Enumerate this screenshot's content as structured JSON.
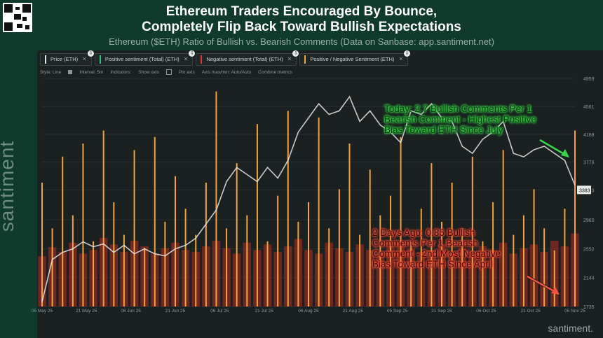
{
  "header": {
    "title_line1": "Ethereum Traders Encouraged By Bounce,",
    "title_line2": "Completely Flip Back Toward Bullish Expectations",
    "subtitle": "Ethereum ($ETH) Ratio of Bullish vs. Bearish Comments (Data on Sanbase: app.santiment.net)"
  },
  "legend": [
    {
      "label": "Price (ETH)",
      "color": "#e8e8e8"
    },
    {
      "label": "Positive sentiment (Total) (ETH)",
      "color": "#2ec27e"
    },
    {
      "label": "Negative sentiment (Total) (ETH)",
      "color": "#e0362c"
    },
    {
      "label": "Positive / Negative Sentiment (ETH)",
      "color": "#f2a33a"
    }
  ],
  "toolbar": {
    "style": "Style: Line",
    "interval": "Interval: 5m",
    "indicators": "Indicators:",
    "show_axis": "Show axis",
    "pin_axis": "Pin axis",
    "axis_minmax": "Axis max/min: Auto/Auto",
    "combine": "Combine metrics"
  },
  "annotations": {
    "bullish": [
      "Today: 2.7 Bullish Comments Per 1",
      "Bearish Comment - Highest Positive",
      "Bias Toward ETH Since July"
    ],
    "bearish": [
      "2 Days Ago: 0.86 Bullish",
      "Comments Per 1 Bearish",
      "Comment - 2nd Most Negative",
      "Bias Toward ETH Since April"
    ]
  },
  "branding": {
    "vertical": "santiment",
    "bottom": "santiment."
  },
  "colors": {
    "background": "#0f3a2c",
    "panel": "#1b2021",
    "price": "#e8e8e8",
    "ratio": "#f2a33a",
    "negative": "#e0362c",
    "annotation_green": "#3bd44a",
    "annotation_red": "#f2553f"
  },
  "chart_data": {
    "type": "line",
    "title": "Ethereum ($ETH) Ratio of Bullish vs. Bearish Comments",
    "x_labels": [
      "05 May 25",
      "21 May 25",
      "06 Jun 25",
      "21 Jun 25",
      "06 Jul 25",
      "21 Jul 25",
      "06 Aug 25",
      "21 Aug 25",
      "05 Sep 25",
      "21 Sep 25",
      "06 Oct 25",
      "21 Oct 25",
      "05 Nov 25"
    ],
    "price_axis_ticks": [
      4959,
      4561,
      4168,
      3776,
      3383,
      2960,
      2552,
      2144,
      1735
    ],
    "price_ylim": [
      1735,
      4959
    ],
    "current_price_label": "3383",
    "series": [
      {
        "name": "Price (ETH)",
        "values": [
          1800,
          2400,
          2500,
          2550,
          2650,
          2580,
          2620,
          2500,
          2600,
          2480,
          2550,
          2480,
          2450,
          2550,
          2600,
          2700,
          2900,
          3100,
          3500,
          3700,
          3600,
          3500,
          3700,
          3550,
          3800,
          4200,
          4400,
          4600,
          4450,
          4500,
          4700,
          4350,
          4500,
          4300,
          4200,
          4050,
          4500,
          4450,
          4600,
          4400,
          4350,
          4000,
          3900,
          4100,
          4200,
          4350,
          3900,
          3850,
          3950,
          4000,
          3900,
          3800,
          3450
        ]
      },
      {
        "name": "Positive / Negative Sentiment (ETH)",
        "values": [
          1.9,
          1.2,
          2.3,
          1.4,
          2.5,
          1.0,
          2.7,
          1.6,
          1.1,
          2.4,
          0.9,
          2.6,
          1.3,
          2.0,
          1.5,
          1.1,
          1.9,
          3.3,
          1.2,
          2.2,
          1.4,
          2.8,
          1.0,
          1.7,
          3.0,
          1.3,
          1.6,
          2.9,
          1.2,
          1.8,
          2.5,
          1.1,
          2.1,
          1.4,
          1.7,
          2.6,
          1.0,
          1.5,
          2.2,
          1.3,
          1.9,
          1.2,
          2.3,
          1.0,
          1.6,
          2.4,
          1.1,
          1.4,
          1.8,
          1.2,
          0.86,
          1.5,
          2.7
        ]
      },
      {
        "name": "Negative sentiment (Total) (ETH)",
        "values": [
          55,
          65,
          60,
          70,
          58,
          62,
          75,
          68,
          60,
          72,
          66,
          58,
          64,
          70,
          62,
          60,
          66,
          72,
          64,
          58,
          70,
          62,
          68,
          60,
          66,
          74,
          62,
          58,
          70,
          64,
          60,
          68,
          62,
          58,
          66,
          70,
          64,
          60,
          62,
          68,
          58,
          64,
          60,
          66,
          62,
          70,
          58,
          64,
          68,
          60,
          72,
          66,
          80
        ]
      }
    ],
    "annotations": [
      {
        "text": "Today: 2.7 Bullish Comments Per 1 Bearish Comment - Highest Positive Bias Toward ETH Since July",
        "value": 2.7
      },
      {
        "text": "2 Days Ago: 0.86 Bullish Comments Per 1 Bearish Comment - 2nd Most Negative Bias Toward ETH Since April",
        "value": 0.86
      }
    ]
  }
}
